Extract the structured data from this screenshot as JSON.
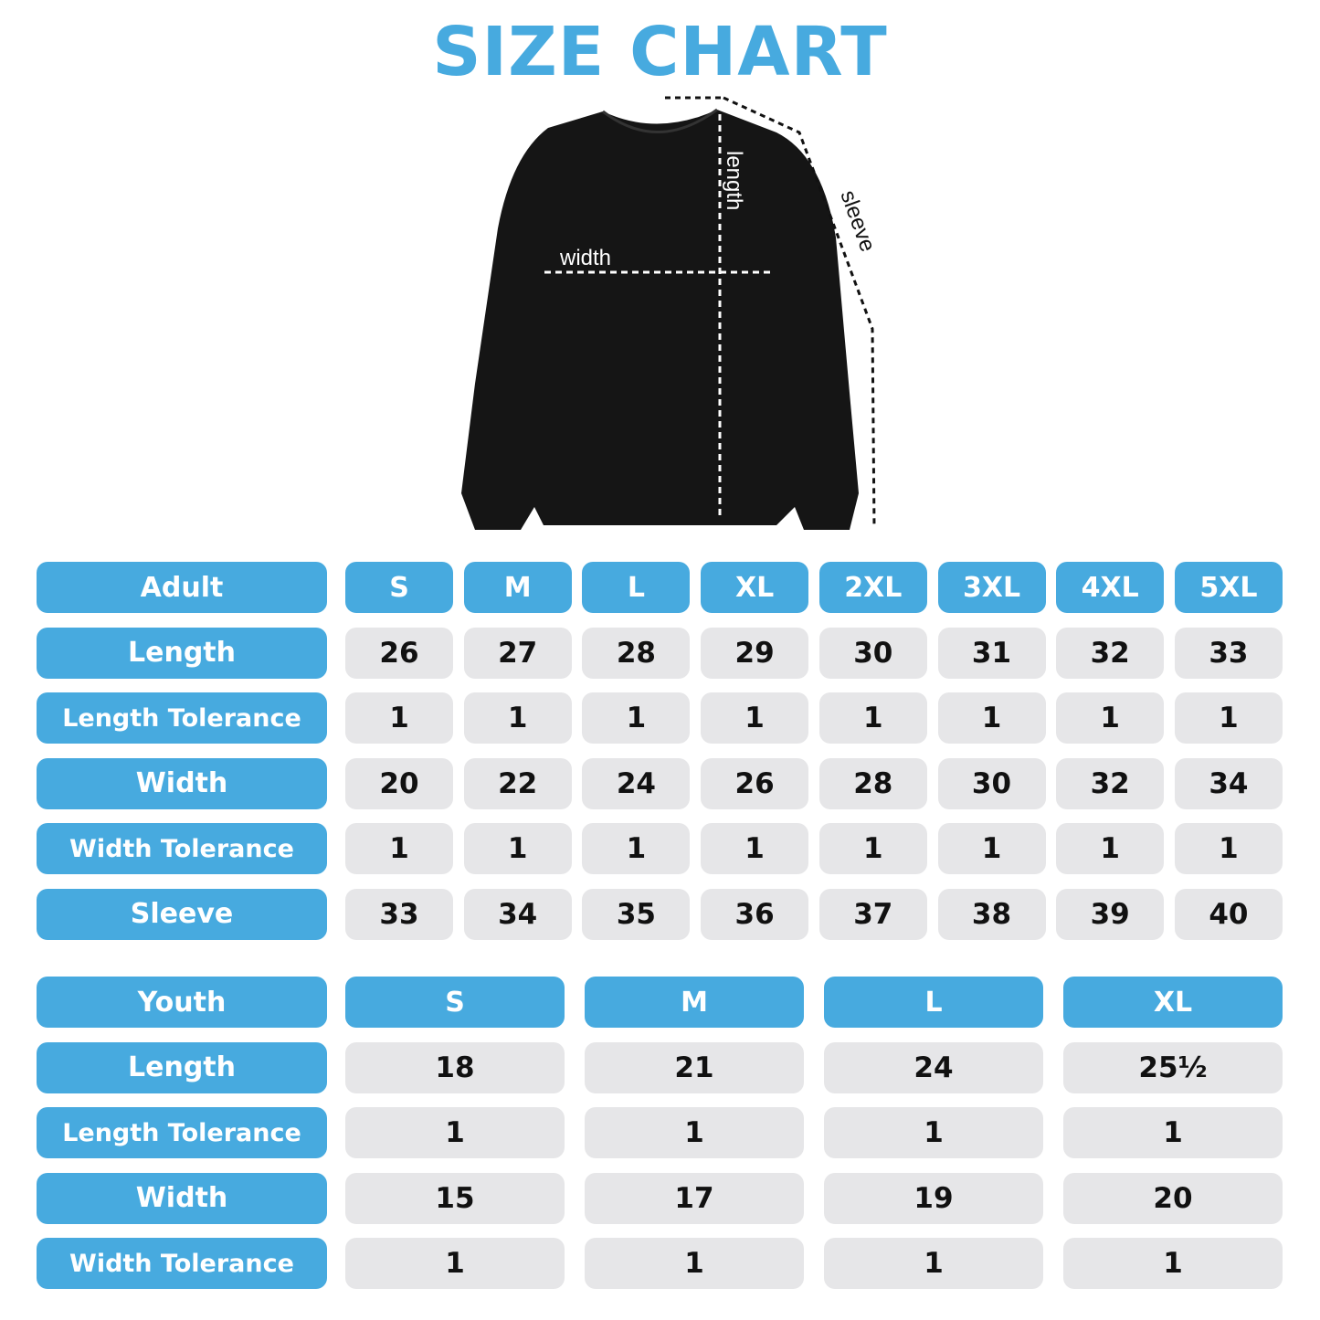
{
  "title": "SIZE CHART",
  "diagram": {
    "width_label": "width",
    "length_label": "length",
    "sleeve_label": "sleeve"
  },
  "colors": {
    "accent": "#47aadf",
    "cell_bg": "#e6e6e8"
  },
  "adult": {
    "header": "Adult",
    "sizes": [
      "S",
      "M",
      "L",
      "XL",
      "2XL",
      "3XL",
      "4XL",
      "5XL"
    ],
    "rows": [
      {
        "label": "Length",
        "values": [
          "26",
          "27",
          "28",
          "29",
          "30",
          "31",
          "32",
          "33"
        ]
      },
      {
        "label": "Length Tolerance",
        "values": [
          "1",
          "1",
          "1",
          "1",
          "1",
          "1",
          "1",
          "1"
        ]
      },
      {
        "label": "Width",
        "values": [
          "20",
          "22",
          "24",
          "26",
          "28",
          "30",
          "32",
          "34"
        ]
      },
      {
        "label": "Width Tolerance",
        "values": [
          "1",
          "1",
          "1",
          "1",
          "1",
          "1",
          "1",
          "1"
        ]
      },
      {
        "label": "Sleeve",
        "values": [
          "33",
          "34",
          "35",
          "36",
          "37",
          "38",
          "39",
          "40"
        ]
      }
    ]
  },
  "youth": {
    "header": "Youth",
    "sizes": [
      "S",
      "M",
      "L",
      "XL"
    ],
    "rows": [
      {
        "label": "Length",
        "values": [
          "18",
          "21",
          "24",
          "25½"
        ]
      },
      {
        "label": "Length Tolerance",
        "values": [
          "1",
          "1",
          "1",
          "1"
        ]
      },
      {
        "label": "Width",
        "values": [
          "15",
          "17",
          "19",
          "20"
        ]
      },
      {
        "label": "Width Tolerance",
        "values": [
          "1",
          "1",
          "1",
          "1"
        ]
      }
    ]
  }
}
